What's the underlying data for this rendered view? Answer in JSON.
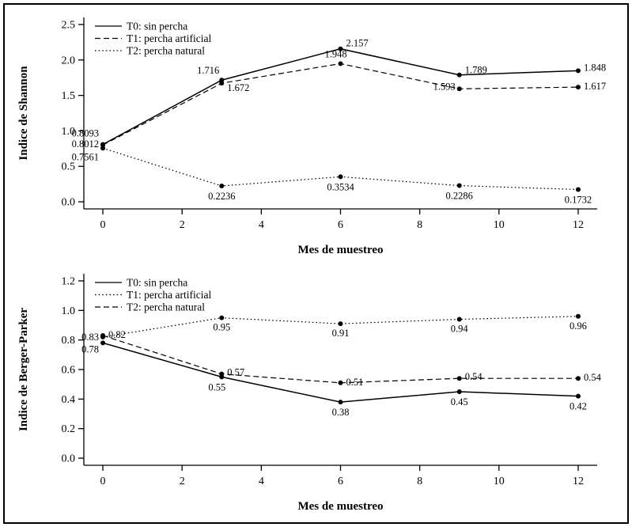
{
  "figure": {
    "background": "#ffffff",
    "border_color": "#000000",
    "line_color": "#000000"
  },
  "chart_data": [
    {
      "type": "line",
      "title": "",
      "ylabel": "Indice de Shannon",
      "xlabel": "Mes de muestreo",
      "xlim": [
        0,
        12
      ],
      "ylim": [
        0,
        2.5
      ],
      "x": [
        0,
        3,
        6,
        9,
        12
      ],
      "xtick_values": [
        0,
        2,
        4,
        6,
        8,
        10,
        12
      ],
      "xticks": [
        "0",
        "2",
        "4",
        "6",
        "8",
        "10",
        "12"
      ],
      "ytick_values": [
        0,
        0.5,
        1.0,
        1.5,
        2.0,
        2.5
      ],
      "yticks": [
        "0.0",
        "0.5",
        "1.0",
        "1.5",
        "2.0",
        "2.5"
      ],
      "grid": false,
      "legend_position": "top-left",
      "series": [
        {
          "name": "T0: sin percha",
          "line_style": "solid",
          "values": [
            0.8093,
            1.716,
            2.157,
            1.789,
            1.848
          ],
          "labels": [
            "0.8093",
            "1.716",
            "2.157",
            "1.789",
            "1.848"
          ],
          "label_layout": [
            [
              "end",
              -5,
              -10
            ],
            [
              "end",
              -3,
              -8
            ],
            [
              "start",
              7,
              -3
            ],
            [
              "start",
              7,
              -2
            ],
            [
              "start",
              7,
              0
            ]
          ]
        },
        {
          "name": "T1: percha artificial",
          "line_style": "dashed",
          "values": [
            0.8012,
            1.672,
            1.948,
            1.593,
            1.617
          ],
          "labels": [
            "0.8012",
            "1.672",
            "1.948",
            "1.593",
            "1.617"
          ],
          "label_layout": [
            [
              "end",
              -5,
              3
            ],
            [
              "start",
              7,
              10
            ],
            [
              "middle",
              -6,
              -8
            ],
            [
              "end",
              -5,
              1
            ],
            [
              "start",
              7,
              3
            ]
          ]
        },
        {
          "name": "T2: percha natural",
          "line_style": "dotted",
          "values": [
            0.7561,
            0.2236,
            0.3534,
            0.2286,
            0.1732
          ],
          "labels": [
            "0.7561",
            "0.2236",
            "0.3534",
            "0.2286",
            "0.1732"
          ],
          "label_layout": [
            [
              "end",
              -5,
              15
            ],
            [
              "middle",
              0,
              17
            ],
            [
              "middle",
              0,
              17
            ],
            [
              "middle",
              0,
              17
            ],
            [
              "middle",
              0,
              17
            ]
          ]
        }
      ]
    },
    {
      "type": "line",
      "title": "",
      "ylabel": "Indice de Berger-Parker",
      "xlabel": "Mes de muestreo",
      "xlim": [
        0,
        12
      ],
      "ylim": [
        0,
        1.2
      ],
      "x": [
        0,
        3,
        6,
        9,
        12
      ],
      "xtick_values": [
        0,
        2,
        4,
        6,
        8,
        10,
        12
      ],
      "xticks": [
        "0",
        "2",
        "4",
        "6",
        "8",
        "10",
        "12"
      ],
      "ytick_values": [
        0,
        0.2,
        0.4,
        0.6,
        0.8,
        1.0,
        1.2
      ],
      "yticks": [
        "0.0",
        "0.2",
        "0.4",
        "0.6",
        "0.8",
        "1.0",
        "1.2"
      ],
      "grid": false,
      "legend_position": "top-left",
      "series": [
        {
          "name": "T0: sin percha",
          "line_style": "solid",
          "values": [
            0.78,
            0.55,
            0.38,
            0.45,
            0.42
          ],
          "labels": [
            "0.78",
            "0.55",
            "0.38",
            "0.45",
            "0.42"
          ],
          "label_layout": [
            [
              "end",
              -5,
              12
            ],
            [
              "middle",
              -6,
              17
            ],
            [
              "middle",
              0,
              17
            ],
            [
              "middle",
              0,
              17
            ],
            [
              "middle",
              0,
              17
            ]
          ]
        },
        {
          "name": "T1: percha artificial",
          "line_style": "dotted",
          "values": [
            0.82,
            0.95,
            0.91,
            0.94,
            0.96
          ],
          "labels": [
            "0.82",
            "0.95",
            "0.91",
            "0.94",
            "0.96"
          ],
          "label_layout": [
            [
              "start",
              7,
              1
            ],
            [
              "middle",
              0,
              16
            ],
            [
              "middle",
              0,
              16
            ],
            [
              "middle",
              0,
              16
            ],
            [
              "middle",
              0,
              16
            ]
          ]
        },
        {
          "name": "T2: percha natural",
          "line_style": "dashed",
          "values": [
            0.83,
            0.57,
            0.51,
            0.54,
            0.54
          ],
          "labels": [
            "0.83",
            "0.57",
            "0.51",
            "0.54",
            "0.54"
          ],
          "label_layout": [
            [
              "end",
              -5,
              6
            ],
            [
              "start",
              7,
              2
            ],
            [
              "start",
              7,
              3
            ],
            [
              "start",
              7,
              2
            ],
            [
              "start",
              7,
              3
            ]
          ]
        }
      ]
    }
  ]
}
